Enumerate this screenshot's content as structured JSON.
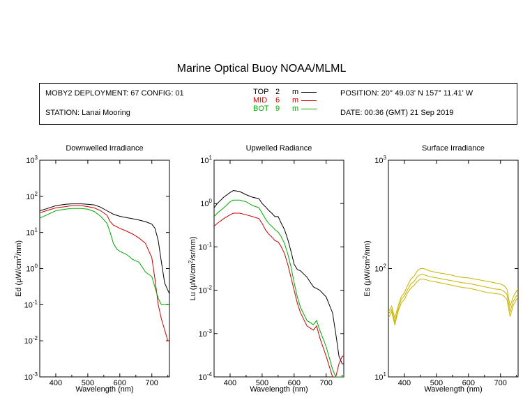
{
  "header": {
    "title": "Marine Optical Buoy NOAA/MLML",
    "deployment": "MOBY2 DEPLOYMENT: 67 CONFIG: 01",
    "station": "STATION: Lanai Mooring",
    "position": "POSITION: 20° 49.03' N   157° 11.41' W",
    "date": "DATE: 00:36 (GMT) 21 Sep 2019"
  },
  "legend": [
    {
      "name": "TOP",
      "depth": "2",
      "unit": "m",
      "color": "#000000"
    },
    {
      "name": "MID",
      "depth": "6",
      "unit": "m",
      "color": "#cc0000"
    },
    {
      "name": "BOT",
      "depth": "9",
      "unit": "m",
      "color": "#00aa00"
    }
  ],
  "chart_data": [
    {
      "type": "line",
      "title": "Downwelled Irradiance",
      "xlabel": "Wavelength (nm)",
      "ylabel": "Ed  (µW/cm²/nm)",
      "ylabel_parts": {
        "pre": "Ed  (µW/cm",
        "sup": "2",
        "post": "/nm)"
      },
      "x_ticks": [
        "400",
        "500",
        "600",
        "700"
      ],
      "y_scale": "log",
      "y_ticks": [
        {
          "base": "10",
          "exp": "-3"
        },
        {
          "base": "10",
          "exp": "-2"
        },
        {
          "base": "10",
          "exp": "-1"
        },
        {
          "base": "10",
          "exp": "0"
        },
        {
          "base": "10",
          "exp": "1"
        },
        {
          "base": "10",
          "exp": "2"
        },
        {
          "base": "10",
          "exp": "3"
        }
      ],
      "xlim": [
        350,
        755
      ],
      "ylim": [
        0.001,
        1000
      ],
      "series": [
        {
          "name": "TOP",
          "color": "#000000",
          "x": [
            350,
            370,
            400,
            430,
            450,
            480,
            500,
            520,
            540,
            560,
            580,
            600,
            620,
            640,
            660,
            680,
            700,
            710,
            720,
            730,
            740,
            750,
            755
          ],
          "y": [
            40,
            45,
            55,
            60,
            62,
            62,
            60,
            58,
            50,
            40,
            32,
            28,
            26,
            24,
            22,
            20,
            17,
            13,
            6,
            1.5,
            0.4,
            0.25,
            0.2
          ]
        },
        {
          "name": "MID",
          "color": "#cc0000",
          "x": [
            350,
            370,
            400,
            430,
            450,
            480,
            500,
            520,
            540,
            560,
            570,
            580,
            600,
            620,
            640,
            660,
            680,
            700,
            710,
            720,
            730,
            740,
            750,
            755
          ],
          "y": [
            35,
            40,
            48,
            52,
            55,
            55,
            52,
            48,
            40,
            30,
            20,
            16,
            13,
            11,
            9,
            7,
            5,
            2,
            0.5,
            0.1,
            0.04,
            0.02,
            0.01,
            0.01
          ]
        },
        {
          "name": "BOT",
          "color": "#00aa00",
          "x": [
            350,
            370,
            400,
            430,
            450,
            480,
            500,
            520,
            540,
            560,
            570,
            580,
            590,
            600,
            620,
            640,
            660,
            680,
            700,
            710,
            720,
            730,
            740,
            750,
            755
          ],
          "y": [
            25,
            30,
            40,
            44,
            46,
            46,
            44,
            38,
            28,
            18,
            10,
            5,
            3.5,
            3,
            2.5,
            1.8,
            1.5,
            0.8,
            0.6,
            0.3,
            0.15,
            0.1,
            0.1,
            0.1,
            0.1
          ]
        }
      ]
    },
    {
      "type": "line",
      "title": "Upwelled Radiance",
      "xlabel": "Wavelength (nm)",
      "ylabel": "Lu  (µW/cm²/sr/nm)",
      "ylabel_parts": {
        "pre": "Lu  (µW/cm",
        "sup": "2",
        "post": "/sr/nm)"
      },
      "x_ticks": [
        "400",
        "500",
        "600",
        "700"
      ],
      "y_scale": "log",
      "y_ticks": [
        {
          "base": "10",
          "exp": "-4"
        },
        {
          "base": "10",
          "exp": "-3"
        },
        {
          "base": "10",
          "exp": "-2"
        },
        {
          "base": "10",
          "exp": "-1"
        },
        {
          "base": "10",
          "exp": "0"
        },
        {
          "base": "10",
          "exp": "1"
        }
      ],
      "xlim": [
        350,
        755
      ],
      "ylim": [
        0.0001,
        10
      ],
      "series": [
        {
          "name": "TOP",
          "color": "#000000",
          "x": [
            350,
            360,
            380,
            400,
            410,
            430,
            450,
            470,
            490,
            500,
            510,
            520,
            530,
            540,
            550,
            560,
            570,
            580,
            590,
            600,
            610,
            620,
            640,
            660,
            680,
            700,
            720,
            730,
            740,
            750,
            755
          ],
          "y": [
            0.8,
            1.0,
            1.4,
            1.8,
            2.0,
            1.9,
            1.6,
            1.4,
            1.3,
            1.0,
            0.85,
            0.7,
            0.6,
            0.5,
            0.5,
            0.35,
            0.25,
            0.15,
            0.08,
            0.04,
            0.03,
            0.028,
            0.02,
            0.012,
            0.01,
            0.007,
            0.003,
            0.001,
            0.0003,
            0.0002,
            0.0002
          ]
        },
        {
          "name": "MID",
          "color": "#cc0000",
          "x": [
            350,
            360,
            380,
            400,
            410,
            430,
            450,
            470,
            490,
            500,
            510,
            520,
            530,
            540,
            550,
            560,
            570,
            580,
            590,
            600,
            610,
            620,
            640,
            660,
            670,
            680,
            700,
            720,
            730,
            740,
            750,
            755
          ],
          "y": [
            0.3,
            0.35,
            0.45,
            0.55,
            0.6,
            0.6,
            0.55,
            0.5,
            0.45,
            0.35,
            0.25,
            0.2,
            0.17,
            0.14,
            0.13,
            0.1,
            0.07,
            0.04,
            0.02,
            0.01,
            0.005,
            0.003,
            0.0015,
            0.0012,
            0.0015,
            0.0008,
            0.0003,
            0.0001,
            0.0001,
            0.0002,
            0.0003,
            0.0003
          ]
        },
        {
          "name": "BOT",
          "color": "#00aa00",
          "x": [
            350,
            360,
            380,
            400,
            410,
            430,
            450,
            470,
            490,
            500,
            510,
            520,
            530,
            540,
            550,
            560,
            570,
            580,
            590,
            600,
            610,
            620,
            640,
            660,
            670,
            680,
            700,
            720,
            730,
            740,
            750,
            755
          ],
          "y": [
            0.5,
            0.6,
            0.8,
            1.1,
            1.2,
            1.2,
            1.1,
            0.9,
            0.8,
            0.6,
            0.45,
            0.35,
            0.3,
            0.25,
            0.22,
            0.17,
            0.12,
            0.07,
            0.035,
            0.015,
            0.007,
            0.004,
            0.002,
            0.0016,
            0.002,
            0.0012,
            0.0005,
            0.00015,
            0.0001,
            0.0001,
            0.0001,
            0.0001
          ]
        }
      ]
    },
    {
      "type": "line",
      "title": "Surface Irradiance",
      "xlabel": "Wavelength (nm)",
      "ylabel": "Es  (µW/cm²/nm)",
      "ylabel_parts": {
        "pre": "Es  (µW/cm",
        "sup": "2",
        "post": "/nm)"
      },
      "x_ticks": [
        "400",
        "500",
        "600",
        "700"
      ],
      "y_scale": "log",
      "y_ticks": [
        {
          "base": "10",
          "exp": "1"
        },
        {
          "base": "10",
          "exp": "2"
        },
        {
          "base": "10",
          "exp": "3"
        }
      ],
      "xlim": [
        350,
        755
      ],
      "ylim": [
        10,
        1000
      ],
      "series": [
        {
          "color": "#c8b400",
          "x": [
            350,
            360,
            370,
            380,
            390,
            400,
            410,
            420,
            430,
            440,
            450,
            460,
            480,
            500,
            520,
            540,
            560,
            580,
            600,
            620,
            640,
            660,
            680,
            700,
            710,
            720,
            730,
            740,
            750,
            755
          ],
          "y": [
            40,
            45,
            35,
            45,
            55,
            60,
            70,
            80,
            85,
            95,
            100,
            100,
            95,
            92,
            90,
            88,
            85,
            83,
            82,
            80,
            78,
            76,
            74,
            72,
            70,
            65,
            45,
            55,
            62,
            65
          ]
        },
        {
          "color": "#c8b400",
          "x": [
            350,
            360,
            370,
            380,
            390,
            400,
            410,
            420,
            430,
            440,
            450,
            460,
            480,
            500,
            520,
            540,
            560,
            580,
            600,
            620,
            640,
            660,
            680,
            700,
            710,
            720,
            730,
            740,
            750,
            755
          ],
          "y": [
            38,
            42,
            32,
            42,
            52,
            56,
            64,
            72,
            76,
            84,
            88,
            88,
            84,
            82,
            80,
            78,
            76,
            74,
            73,
            71,
            69,
            67,
            65,
            64,
            62,
            58,
            40,
            50,
            56,
            58
          ]
        },
        {
          "color": "#c8b400",
          "x": [
            350,
            360,
            370,
            380,
            390,
            400,
            410,
            420,
            430,
            440,
            450,
            460,
            480,
            500,
            520,
            540,
            560,
            580,
            600,
            620,
            640,
            660,
            680,
            700,
            710,
            720,
            730,
            740,
            750,
            755
          ],
          "y": [
            35,
            40,
            30,
            40,
            48,
            52,
            60,
            66,
            70,
            76,
            80,
            80,
            77,
            75,
            73,
            71,
            69,
            67,
            66,
            64,
            62,
            60,
            59,
            58,
            56,
            52,
            36,
            46,
            52,
            54
          ]
        }
      ]
    }
  ]
}
